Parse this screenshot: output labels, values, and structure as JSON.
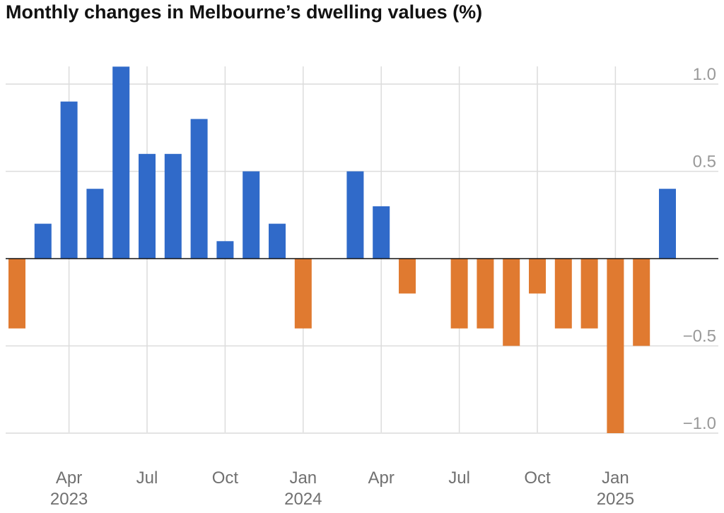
{
  "title": "Monthly changes in Melbourne’s dwelling values (%)",
  "colors": {
    "positive": "#306ac9",
    "negative": "#e07a30",
    "grid": "#dcdcdc",
    "zero": "#121212"
  },
  "chart_data": {
    "type": "bar",
    "title": "Monthly changes in Melbourne’s dwelling values (%)",
    "xlabel": "",
    "ylabel": "",
    "ylim": [
      -1.0,
      1.1
    ],
    "grid": true,
    "categories": [
      "Feb 2023",
      "Mar 2023",
      "Apr 2023",
      "May 2023",
      "Jun 2023",
      "Jul 2023",
      "Aug 2023",
      "Sep 2023",
      "Oct 2023",
      "Nov 2023",
      "Dec 2023",
      "Jan 2024",
      "Feb 2024",
      "Mar 2024",
      "Apr 2024",
      "May 2024",
      "Jun 2024",
      "Jul 2024",
      "Aug 2024",
      "Sep 2024",
      "Oct 2024",
      "Nov 2024",
      "Dec 2024",
      "Jan 2025",
      "Feb 2025",
      "Mar 2025"
    ],
    "values": [
      -0.4,
      0.2,
      0.9,
      0.4,
      1.1,
      0.6,
      0.6,
      0.8,
      0.1,
      0.5,
      0.2,
      -0.4,
      0.0,
      0.5,
      0.3,
      -0.2,
      0.0,
      -0.4,
      -0.4,
      -0.5,
      -0.2,
      -0.4,
      -0.4,
      -1.0,
      -0.5,
      0.4
    ],
    "y_ticks": [
      {
        "value": 1.0,
        "label": "1.0"
      },
      {
        "value": 0.5,
        "label": "0.5"
      },
      {
        "value": -0.5,
        "label": "−0.5"
      },
      {
        "value": -1.0,
        "label": "−1.0"
      }
    ],
    "x_ticks": [
      {
        "index": 2,
        "label": "Apr",
        "year": "2023"
      },
      {
        "index": 5,
        "label": "Jul",
        "year": ""
      },
      {
        "index": 8,
        "label": "Oct",
        "year": ""
      },
      {
        "index": 11,
        "label": "Jan",
        "year": "2024"
      },
      {
        "index": 14,
        "label": "Apr",
        "year": ""
      },
      {
        "index": 17,
        "label": "Jul",
        "year": ""
      },
      {
        "index": 20,
        "label": "Oct",
        "year": ""
      },
      {
        "index": 23,
        "label": "Jan",
        "year": "2025"
      }
    ]
  }
}
